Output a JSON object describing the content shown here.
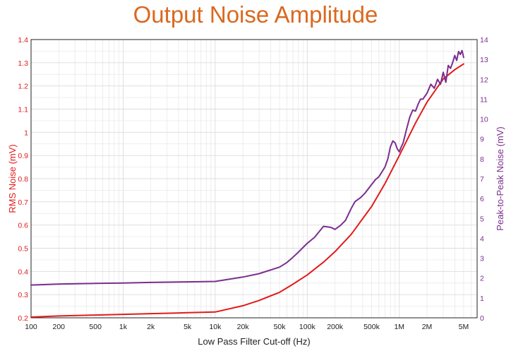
{
  "chart_data": {
    "type": "line",
    "title": "Output Noise Amplitude",
    "xlabel": "Low Pass Filter Cut-off (Hz)",
    "ylabel_left": "RMS Noise (mV)",
    "ylabel_right": "Peak-to-Peak Noise (mV)",
    "xscale": "log",
    "xlim": [
      100,
      7000000
    ],
    "ylim_left": [
      0.2,
      1.4
    ],
    "ylim_right": [
      0,
      14
    ],
    "grid": true,
    "x_ticks": [
      {
        "value": 100,
        "label": "100"
      },
      {
        "value": 200,
        "label": "200"
      },
      {
        "value": 500,
        "label": "500"
      },
      {
        "value": 1000,
        "label": "1k"
      },
      {
        "value": 2000,
        "label": "2k"
      },
      {
        "value": 5000,
        "label": "5k"
      },
      {
        "value": 10000,
        "label": "10k"
      },
      {
        "value": 20000,
        "label": "20k"
      },
      {
        "value": 50000,
        "label": "50k"
      },
      {
        "value": 100000,
        "label": "100k"
      },
      {
        "value": 200000,
        "label": "200k"
      },
      {
        "value": 500000,
        "label": "500k"
      },
      {
        "value": 1000000,
        "label": "1M"
      },
      {
        "value": 2000000,
        "label": "2M"
      },
      {
        "value": 5000000,
        "label": "5M"
      }
    ],
    "y_left_ticks": [
      "0.2",
      "0.3",
      "0.4",
      "0.5",
      "0.6",
      "0.7",
      "0.8",
      "0.9",
      "1",
      "1.1",
      "1.2",
      "1.3",
      "1.4"
    ],
    "y_right_ticks": [
      "0",
      "1",
      "2",
      "3",
      "4",
      "5",
      "6",
      "7",
      "8",
      "9",
      "10",
      "11",
      "12",
      "13",
      "14"
    ],
    "colors": {
      "rms": "#e31a1a",
      "p2p": "#7a2e8e"
    },
    "series": [
      {
        "name": "RMS Noise",
        "axis": "left",
        "color": "#e31a1a",
        "x": [
          100,
          200,
          500,
          1000,
          2000,
          5000,
          10000,
          20000,
          30000,
          50000,
          70000,
          100000,
          150000,
          200000,
          300000,
          500000,
          700000,
          1000000,
          1500000,
          2000000,
          3000000,
          4000000,
          5000000
        ],
        "y": [
          0.203,
          0.208,
          0.212,
          0.215,
          0.218,
          0.222,
          0.225,
          0.252,
          0.275,
          0.31,
          0.345,
          0.385,
          0.44,
          0.485,
          0.56,
          0.68,
          0.78,
          0.9,
          1.04,
          1.13,
          1.23,
          1.27,
          1.295
        ]
      },
      {
        "name": "Peak-to-Peak Noise",
        "axis": "right",
        "color": "#7a2e8e",
        "x": [
          100,
          200,
          500,
          1000,
          2000,
          5000,
          10000,
          20000,
          30000,
          50000,
          60000,
          70000,
          80000,
          100000,
          120000,
          150000,
          180000,
          200000,
          230000,
          260000,
          300000,
          330000,
          380000,
          420000,
          480000,
          550000,
          600000,
          650000,
          700000,
          750000,
          800000,
          850000,
          900000,
          950000,
          1000000,
          1050000,
          1100000,
          1200000,
          1300000,
          1400000,
          1500000,
          1600000,
          1700000,
          1800000,
          2000000,
          2200000,
          2400000,
          2600000,
          2800000,
          3000000,
          3200000,
          3400000,
          3600000,
          3800000,
          4000000,
          4200000,
          4400000,
          4600000,
          4800000,
          5000000
        ],
        "y": [
          1.65,
          1.7,
          1.73,
          1.75,
          1.78,
          1.81,
          1.83,
          2.05,
          2.22,
          2.55,
          2.78,
          3.05,
          3.3,
          3.75,
          4.05,
          4.6,
          4.55,
          4.45,
          4.65,
          4.9,
          5.5,
          5.85,
          6.05,
          6.25,
          6.6,
          6.95,
          7.1,
          7.35,
          7.6,
          8.0,
          8.6,
          8.9,
          8.8,
          8.5,
          8.35,
          8.6,
          8.8,
          9.5,
          10.1,
          10.45,
          10.4,
          10.75,
          11.0,
          11.0,
          11.3,
          11.75,
          11.55,
          12.0,
          11.75,
          12.35,
          11.85,
          12.7,
          12.55,
          12.85,
          13.2,
          12.95,
          13.4,
          13.25,
          13.45,
          13.1
        ]
      }
    ]
  }
}
